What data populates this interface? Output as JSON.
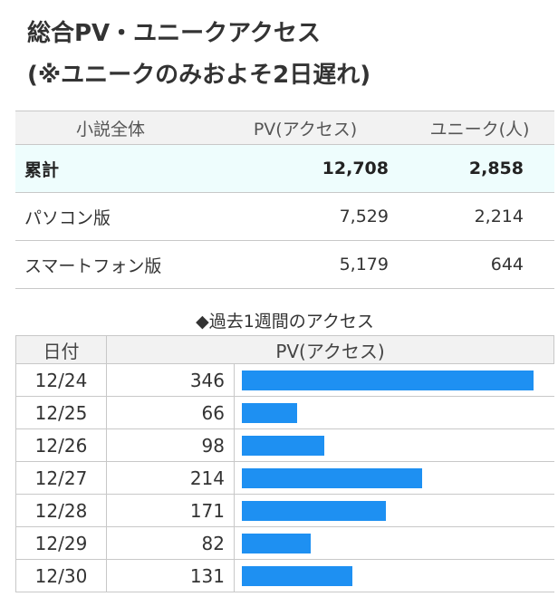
{
  "header": {
    "title_line1": "総合PV・ユニークアクセス",
    "title_line2": "(※ユニークのみおよそ2日遅れ)"
  },
  "summary": {
    "columns": [
      "小説全体",
      "PV(アクセス)",
      "ユニーク(人)"
    ],
    "rows": [
      {
        "label": "累計",
        "pv": "12,708",
        "unique": "2,858"
      },
      {
        "label": "パソコン版",
        "pv": "7,529",
        "unique": "2,214"
      },
      {
        "label": "スマートフォン版",
        "pv": "5,179",
        "unique": "644"
      }
    ]
  },
  "weekly": {
    "title": "◆過去1週間のアクセス",
    "columns": [
      "日付",
      "PV(アクセス)"
    ],
    "bar_color": "#1e90f2",
    "max_value": 346,
    "rows": [
      {
        "date": "12/24",
        "pv": "346",
        "value": 346
      },
      {
        "date": "12/25",
        "pv": "66",
        "value": 66
      },
      {
        "date": "12/26",
        "pv": "98",
        "value": 98
      },
      {
        "date": "12/27",
        "pv": "214",
        "value": 214
      },
      {
        "date": "12/28",
        "pv": "171",
        "value": 171
      },
      {
        "date": "12/29",
        "pv": "82",
        "value": 82
      },
      {
        "date": "12/30",
        "pv": "131",
        "value": 131
      }
    ]
  }
}
